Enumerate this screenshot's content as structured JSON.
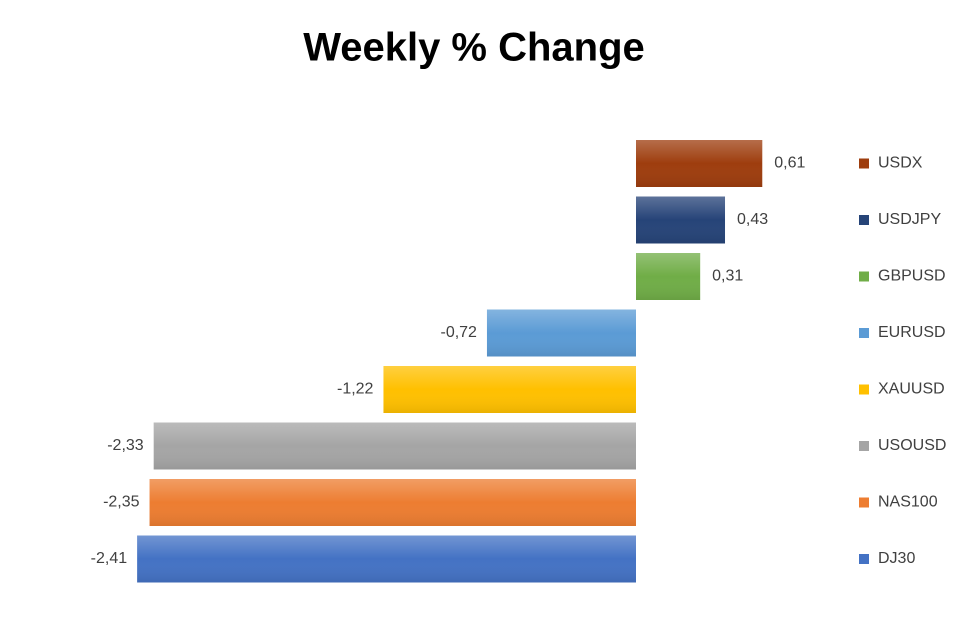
{
  "chart_data": {
    "type": "bar",
    "orientation": "horizontal",
    "title": "Weekly % Change",
    "series": [
      {
        "name": "USDX",
        "color": "#9e3d0e",
        "values": [
          0.61
        ],
        "value_labels": [
          "0,61"
        ]
      },
      {
        "name": "USDJPY",
        "color": "#264478",
        "values": [
          0.43
        ],
        "value_labels": [
          "0,43"
        ]
      },
      {
        "name": "GBPUSD",
        "color": "#70ad47",
        "values": [
          0.31
        ],
        "value_labels": [
          "0,31"
        ]
      },
      {
        "name": "EURUSD",
        "color": "#5b9bd5",
        "values": [
          -0.72
        ],
        "value_labels": [
          "-0,72"
        ]
      },
      {
        "name": "XAUUSD",
        "color": "#ffc000",
        "values": [
          -1.22
        ],
        "value_labels": [
          "-1,22"
        ]
      },
      {
        "name": "USOUSD",
        "color": "#a5a5a5",
        "values": [
          -2.33
        ],
        "value_labels": [
          "-2,33"
        ]
      },
      {
        "name": "NAS100",
        "color": "#ed7d31",
        "values": [
          -2.35
        ],
        "value_labels": [
          "-2,35"
        ]
      },
      {
        "name": "DJ30",
        "color": "#4472c4",
        "values": [
          -2.41
        ],
        "value_labels": [
          "-2,41"
        ]
      }
    ]
  }
}
